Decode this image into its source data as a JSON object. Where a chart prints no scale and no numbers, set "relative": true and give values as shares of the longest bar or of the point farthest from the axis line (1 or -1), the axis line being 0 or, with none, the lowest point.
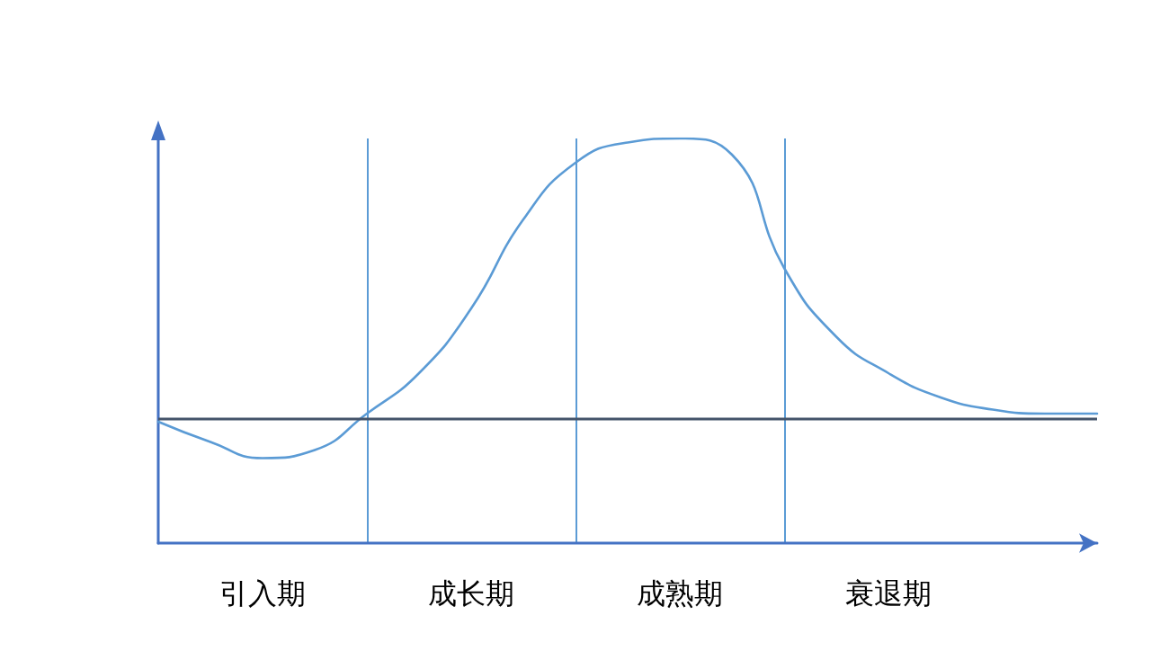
{
  "chart_data": {
    "type": "line",
    "relative": true,
    "color": "#5b9bd5",
    "marker": "none",
    "categories": [
      null,
      null,
      "引入期",
      null,
      null,
      null,
      "成长期",
      null,
      null,
      null,
      "成熟期",
      null,
      null,
      null,
      "衰退期",
      null,
      null,
      null,
      null
    ],
    "values": [
      0.3,
      0.25,
      0.21,
      0.23,
      0.32,
      0.42,
      0.58,
      0.8,
      0.94,
      0.99,
      1,
      0.96,
      0.68,
      0.51,
      0.42,
      0.36,
      0.33,
      0.32,
      0.32
    ],
    "ref_lines": [
      {
        "axis": "y",
        "value": 0.31,
        "color": "#44546a"
      }
    ],
    "grid": "x"
  }
}
